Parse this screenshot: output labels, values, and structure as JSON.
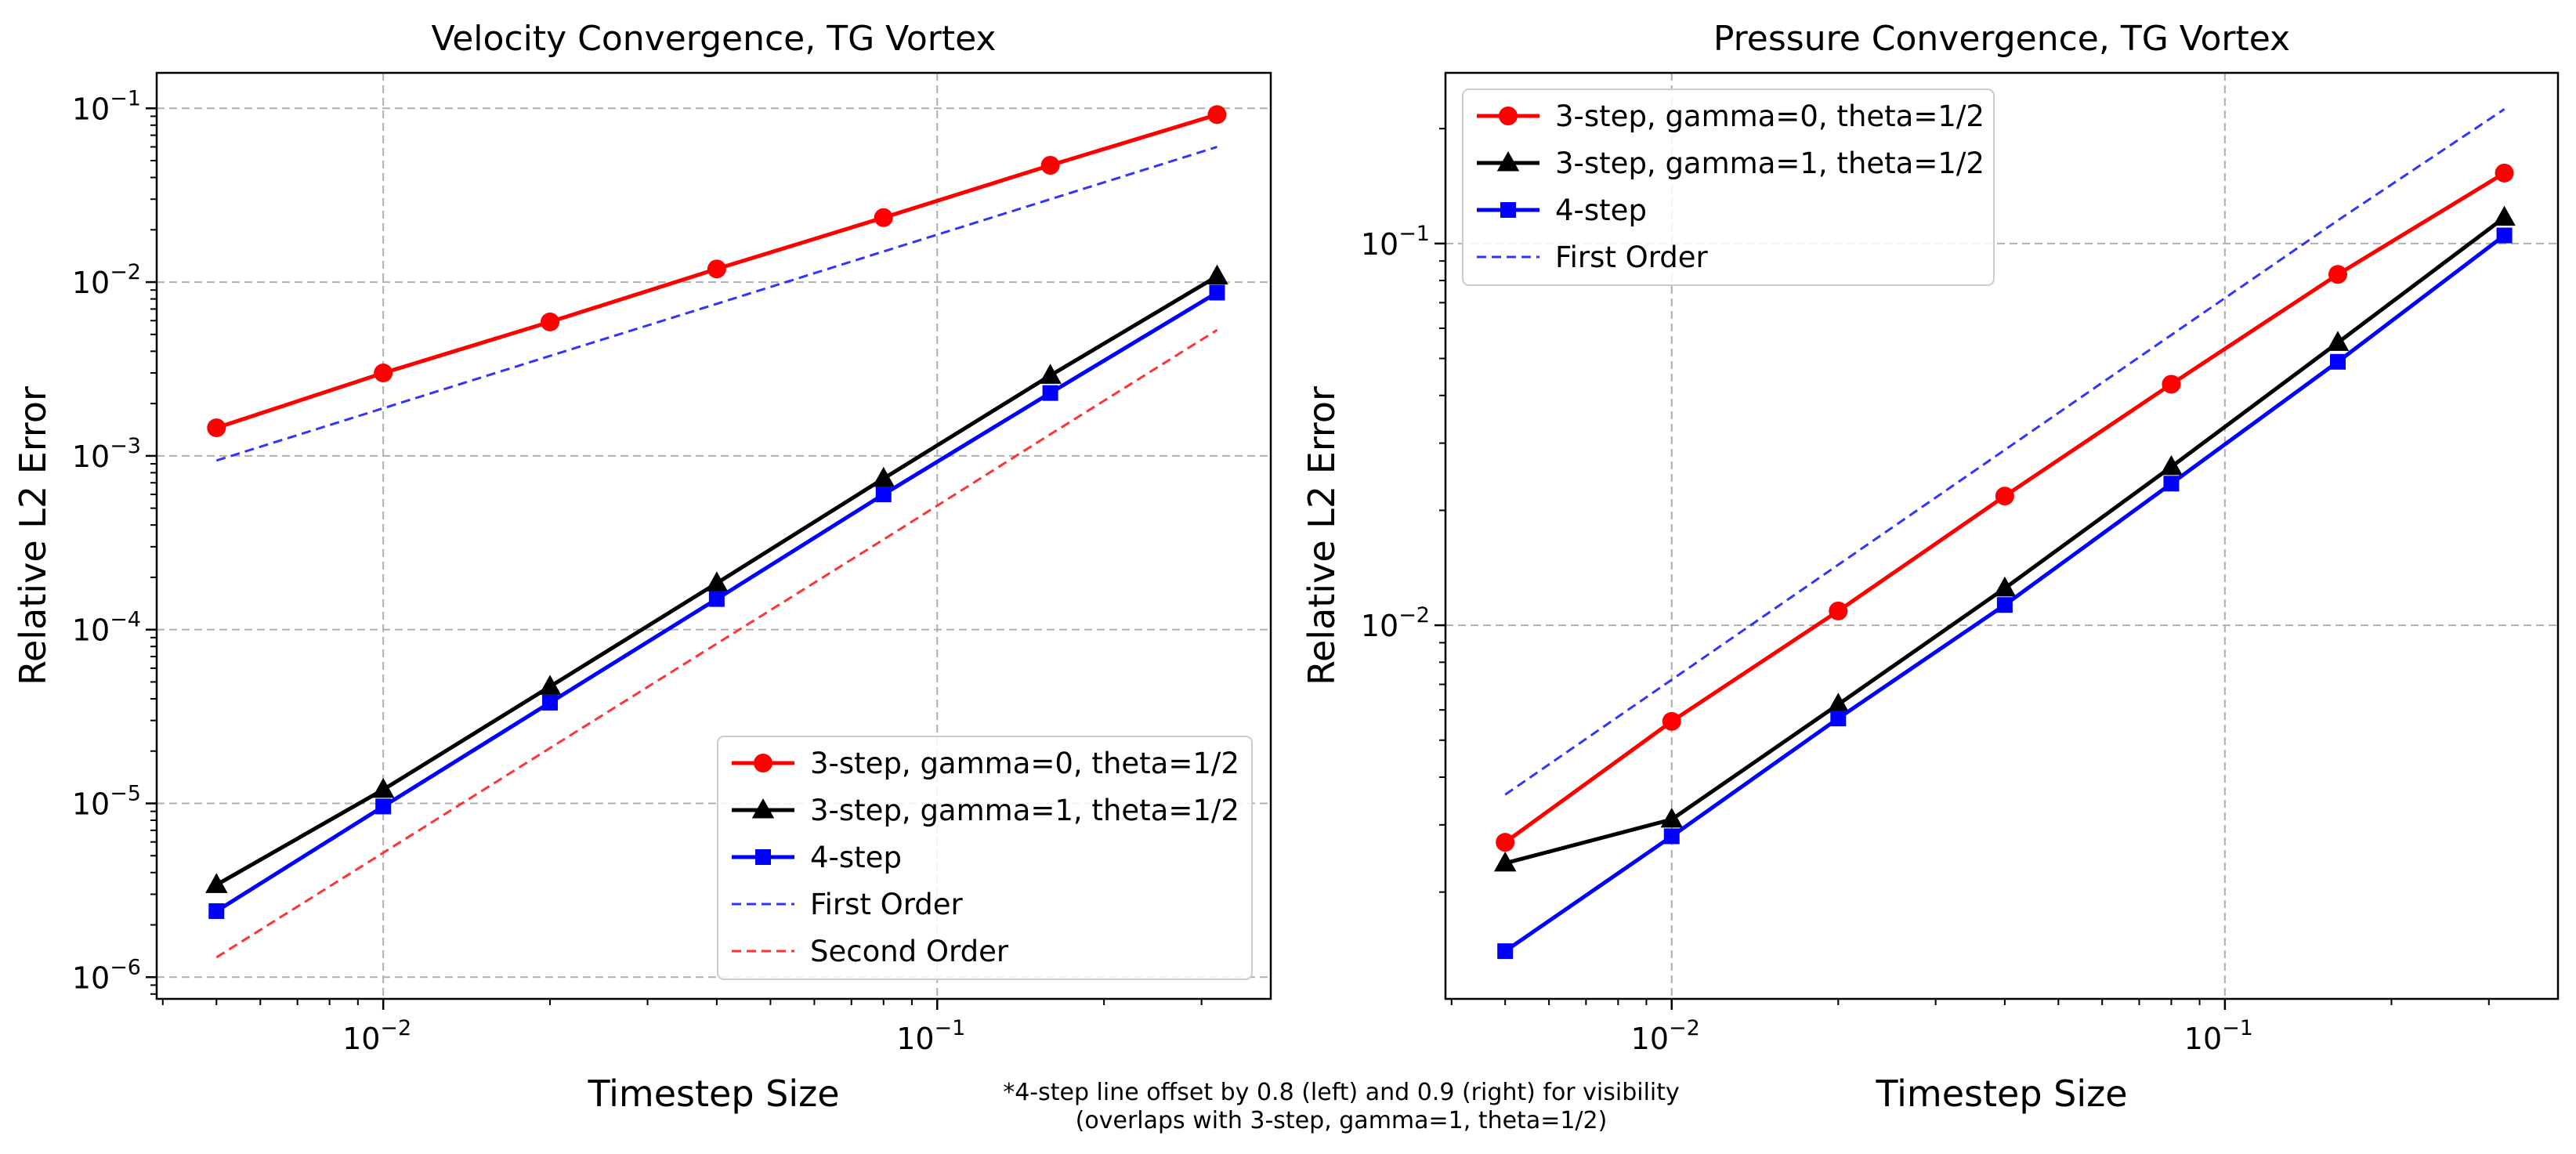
{
  "footnote": {
    "line1": "*4-step line offset by 0.8 (left) and 0.9 (right) for visibility",
    "line2": "(overlaps with 3-step, gamma=1, theta=1/2)"
  },
  "chart_data": [
    {
      "type": "line",
      "title": "Velocity Convergence, TG Vortex",
      "xlabel": "Timestep Size",
      "ylabel": "Relative L2 Error",
      "xscale": "log",
      "yscale": "log",
      "xlim": [
        0.0039,
        0.4
      ],
      "ylim": [
        7.5e-07,
        0.16
      ],
      "xticks": [
        {
          "value": 0.01,
          "base": "10",
          "exp": "−2"
        },
        {
          "value": 0.1,
          "base": "10",
          "exp": "−1"
        }
      ],
      "yticks": [
        {
          "value": 1e-06,
          "base": "10",
          "exp": "−6"
        },
        {
          "value": 1e-05,
          "base": "10",
          "exp": "−5"
        },
        {
          "value": 0.0001,
          "base": "10",
          "exp": "−4"
        },
        {
          "value": 0.001,
          "base": "10",
          "exp": "−3"
        },
        {
          "value": 0.01,
          "base": "10",
          "exp": "−2"
        },
        {
          "value": 0.1,
          "base": "10",
          "exp": "−1"
        }
      ],
      "grid": true,
      "legend_position": "lower-right",
      "x": [
        0.005,
        0.01,
        0.02,
        0.04,
        0.08,
        0.16,
        0.32
      ],
      "series": [
        {
          "name": "3-step, gamma=0, theta=1/2",
          "color": "#ff0000",
          "style": "solid",
          "marker": "circle",
          "values": [
            0.00145,
            0.003,
            0.0059,
            0.0119,
            0.0235,
            0.047,
            0.092
          ]
        },
        {
          "name": "3-step, gamma=1, theta=1/2",
          "color": "#000000",
          "style": "solid",
          "marker": "triangle",
          "values": [
            3.4e-06,
            1.2e-05,
            4.7e-05,
            0.000185,
            0.00074,
            0.0029,
            0.0108
          ]
        },
        {
          "name": "4-step",
          "color": "#0000ff",
          "style": "solid",
          "marker": "square",
          "values": [
            2.4e-06,
            9.6e-06,
            3.8e-05,
            0.00015,
            0.0006,
            0.0023,
            0.0087
          ]
        },
        {
          "name": "First Order",
          "color": "#3333ff",
          "style": "dashed",
          "marker": "none",
          "values": [
            0.00094,
            0.00188,
            0.00376,
            0.0075,
            0.015,
            0.03,
            0.06
          ]
        },
        {
          "name": "Second Order",
          "color": "#ff3333",
          "style": "dashed",
          "marker": "none",
          "values": [
            1.3e-06,
            5.2e-06,
            2.08e-05,
            8.3e-05,
            0.00033,
            0.00133,
            0.0053
          ]
        }
      ]
    },
    {
      "type": "line",
      "title": "Pressure Convergence, TG Vortex",
      "xlabel": "Timestep Size",
      "ylabel": "Relative L2 Error",
      "xscale": "log",
      "yscale": "log",
      "xlim": [
        0.0039,
        0.4
      ],
      "ylim": [
        0.00105,
        0.28
      ],
      "xticks": [
        {
          "value": 0.01,
          "base": "10",
          "exp": "−2"
        },
        {
          "value": 0.1,
          "base": "10",
          "exp": "−1"
        }
      ],
      "yticks": [
        {
          "value": 0.01,
          "base": "10",
          "exp": "−2"
        },
        {
          "value": 0.1,
          "base": "10",
          "exp": "−1"
        }
      ],
      "grid": true,
      "legend_position": "upper-left",
      "x": [
        0.005,
        0.01,
        0.02,
        0.04,
        0.08,
        0.16,
        0.32
      ],
      "series": [
        {
          "name": "3-step, gamma=0, theta=1/2",
          "color": "#ff0000",
          "style": "solid",
          "marker": "circle",
          "values": [
            0.0027,
            0.0056,
            0.0109,
            0.0218,
            0.0428,
            0.083,
            0.153
          ]
        },
        {
          "name": "3-step, gamma=1, theta=1/2",
          "color": "#000000",
          "style": "solid",
          "marker": "triangle",
          "values": [
            0.00238,
            0.0031,
            0.0062,
            0.0125,
            0.026,
            0.055,
            0.117
          ]
        },
        {
          "name": "4-step",
          "color": "#0000ff",
          "style": "solid",
          "marker": "square",
          "values": [
            0.0014,
            0.0028,
            0.0057,
            0.0113,
            0.0235,
            0.049,
            0.105
          ]
        },
        {
          "name": "First Order",
          "color": "#3333ff",
          "style": "dashed",
          "marker": "none",
          "values": [
            0.0036,
            0.0072,
            0.0144,
            0.0288,
            0.0576,
            0.115,
            0.225
          ]
        }
      ]
    }
  ]
}
